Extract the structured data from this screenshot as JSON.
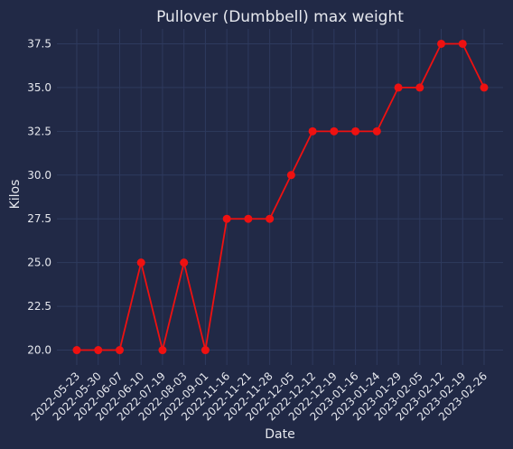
{
  "chart_data": {
    "type": "line",
    "title": "Pullover (Dumbbell) max weight",
    "xlabel": "Date",
    "ylabel": "Kilos",
    "x": [
      "2022-05-23",
      "2022-05-30",
      "2022-06-07",
      "2022-06-10",
      "2022-07-19",
      "2022-08-03",
      "2022-09-01",
      "2022-11-16",
      "2022-11-21",
      "2022-11-28",
      "2022-12-05",
      "2022-12-12",
      "2022-12-19",
      "2023-01-16",
      "2023-01-24",
      "2023-01-29",
      "2023-02-05",
      "2023-02-12",
      "2023-02-19",
      "2023-02-26"
    ],
    "series": [
      {
        "values": [
          20,
          20,
          20,
          25,
          20,
          25,
          20,
          27.5,
          27.5,
          27.5,
          30,
          32.5,
          32.5,
          32.5,
          32.5,
          35,
          35,
          37.5,
          37.5,
          35
        ],
        "color": "#ee1111"
      }
    ],
    "yticks": [
      "20.0",
      "22.5",
      "25.0",
      "27.5",
      "30.0",
      "32.5",
      "35.0",
      "37.5"
    ],
    "ylim": [
      19.15,
      38.35
    ],
    "grid": true,
    "colors": {
      "background": "#212946",
      "plot_background": "#212946",
      "grid": "#2e3a5e",
      "text": "#e6e8ee",
      "line": "#ee1111"
    }
  }
}
